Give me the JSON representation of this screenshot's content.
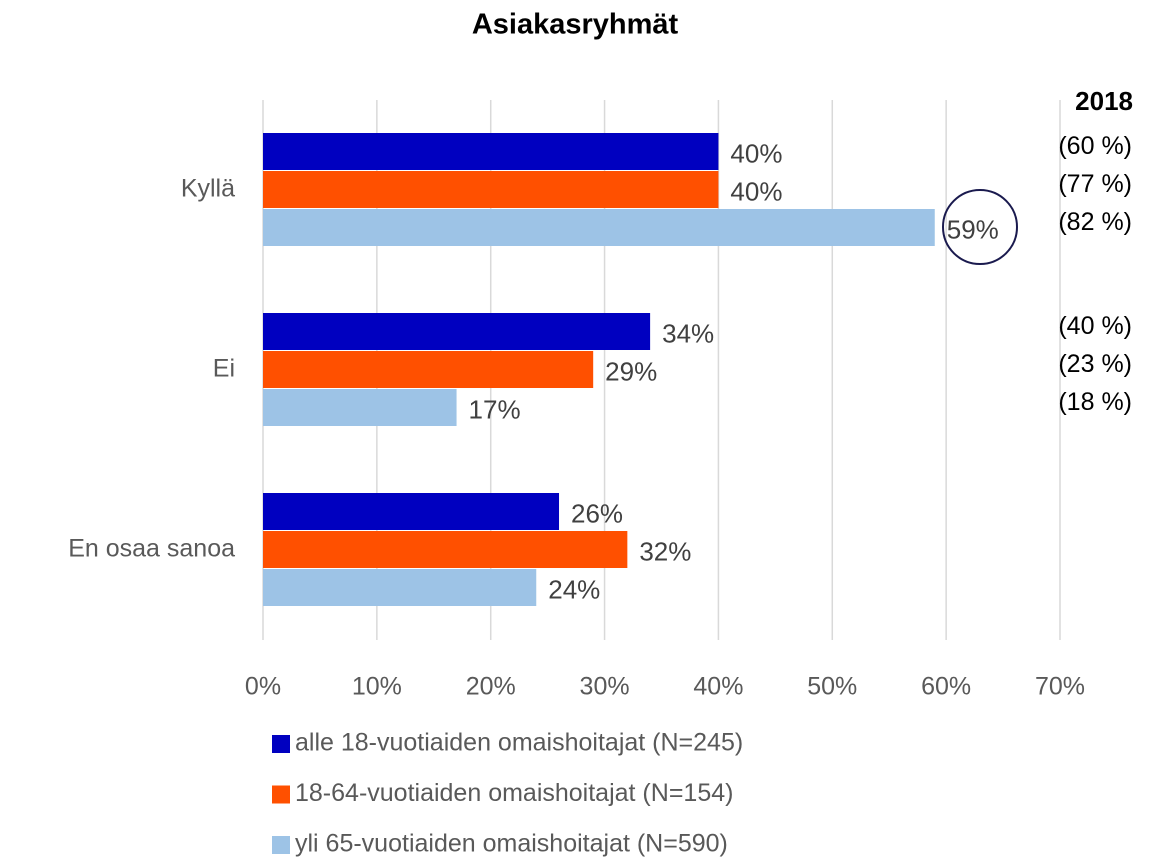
{
  "chart_data": {
    "type": "hbar",
    "title": "Asiakasryhmät",
    "categories": [
      "Kyllä",
      "Ei",
      "En osaa sanoa"
    ],
    "series": [
      {
        "name": "alle 18-vuotiaiden omaishoitajat (N=245)",
        "color": "#0000c0",
        "values": [
          40,
          34,
          26
        ],
        "value_labels": [
          "40%",
          "34%",
          "26%"
        ]
      },
      {
        "name": "18-64-vuotiaiden omaishoitajat (N=154)",
        "color": "#ff5000",
        "values": [
          40,
          29,
          32
        ],
        "value_labels": [
          "40%",
          "29%",
          "32%"
        ]
      },
      {
        "name": "yli 65-vuotiaiden omaishoitajat (N=590)",
        "color": "#9dc3e6",
        "values": [
          59,
          17,
          24
        ],
        "value_labels": [
          "59%",
          "17%",
          "24%"
        ]
      }
    ],
    "xlim": [
      0,
      70
    ],
    "xticks": [
      {
        "value": 0,
        "label": "0%"
      },
      {
        "value": 10,
        "label": "10%"
      },
      {
        "value": 20,
        "label": "20%"
      },
      {
        "value": 30,
        "label": "30%"
      },
      {
        "value": 40,
        "label": "40%"
      },
      {
        "value": 50,
        "label": "50%"
      },
      {
        "value": 60,
        "label": "60%"
      },
      {
        "value": 70,
        "label": "70%"
      }
    ],
    "grid": true,
    "legend": "bottom",
    "comparison": {
      "title": "2018",
      "labels": [
        [
          "(60 %)",
          "(77 %)",
          "(82 %)"
        ],
        [
          "(40 %)",
          "(23 %)",
          "(18 %)"
        ]
      ]
    }
  }
}
